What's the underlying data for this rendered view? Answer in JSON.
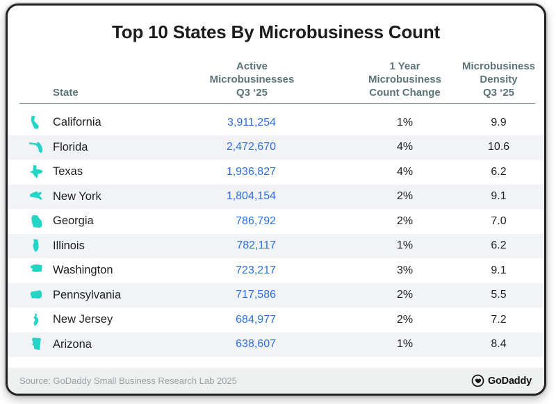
{
  "title": "Top 10 States By Microbusiness Count",
  "colors": {
    "teal": "#24d5c6",
    "blue": "#2b6fe0",
    "ink": "#1f1f1f",
    "slate": "#5c7378",
    "stripe": "#f1f3f7",
    "footer_bg": "#eef0f0",
    "source_text": "#9aa0a0",
    "border": "#212121"
  },
  "table": {
    "headers": {
      "state": "State",
      "active": "Active\nMicrobusinesses\nQ3 ‘25",
      "change": "1 Year\nMicrobusiness\nCount Change",
      "density": "Microbusiness\nDensity\nQ3 ‘25"
    },
    "rows": [
      {
        "icon": "california-icon",
        "state": "California",
        "active": "3,911,254",
        "change": "1%",
        "density": "9.9"
      },
      {
        "icon": "florida-icon",
        "state": "Florida",
        "active": "2,472,670",
        "change": "4%",
        "density": "10.6"
      },
      {
        "icon": "texas-icon",
        "state": "Texas",
        "active": "1,936,827",
        "change": "4%",
        "density": "6.2"
      },
      {
        "icon": "new-york-icon",
        "state": "New York",
        "active": "1,804,154",
        "change": "2%",
        "density": "9.1"
      },
      {
        "icon": "georgia-icon",
        "state": "Georgia",
        "active": "786,792",
        "change": "2%",
        "density": "7.0"
      },
      {
        "icon": "illinois-icon",
        "state": "Illinois",
        "active": "782,117",
        "change": "1%",
        "density": "6.2"
      },
      {
        "icon": "washington-icon",
        "state": "Washington",
        "active": "723,217",
        "change": "3%",
        "density": "9.1"
      },
      {
        "icon": "pennsylvania-icon",
        "state": "Pennsylvania",
        "active": "717,586",
        "change": "2%",
        "density": "5.5"
      },
      {
        "icon": "new-jersey-icon",
        "state": "New Jersey",
        "active": "684,977",
        "change": "2%",
        "density": "7.2"
      },
      {
        "icon": "arizona-icon",
        "state": "Arizona",
        "active": "638,607",
        "change": "1%",
        "density": "8.4"
      }
    ]
  },
  "footer": {
    "source": "Source: GoDaddy Small Business Research Lab 2025",
    "brand": "GoDaddy",
    "logo_icon": "godaddy-logo-icon"
  },
  "chart_data": {
    "type": "table",
    "title": "Top 10 States By Microbusiness Count",
    "columns": [
      "State",
      "Active Microbusinesses Q3 '25",
      "1 Year Microbusiness Count Change",
      "Microbusiness Density Q3 '25"
    ],
    "rows": [
      [
        "California",
        3911254,
        "1%",
        9.9
      ],
      [
        "Florida",
        2472670,
        "4%",
        10.6
      ],
      [
        "Texas",
        1936827,
        "4%",
        6.2
      ],
      [
        "New York",
        1804154,
        "2%",
        9.1
      ],
      [
        "Georgia",
        786792,
        "2%",
        7.0
      ],
      [
        "Illinois",
        782117,
        "1%",
        6.2
      ],
      [
        "Washington",
        723217,
        "3%",
        9.1
      ],
      [
        "Pennsylvania",
        717586,
        "2%",
        5.5
      ],
      [
        "New Jersey",
        684977,
        "2%",
        7.2
      ],
      [
        "Arizona",
        638607,
        "1%",
        8.4
      ]
    ],
    "source": "GoDaddy Small Business Research Lab 2025"
  }
}
